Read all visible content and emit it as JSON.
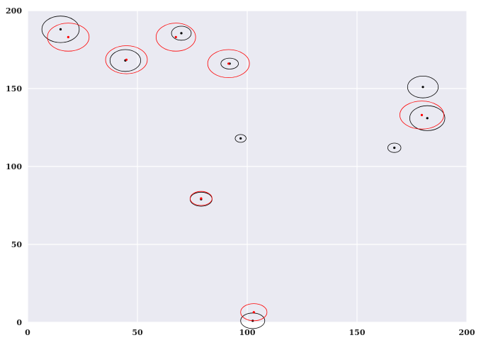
{
  "chart_data": {
    "type": "scatter",
    "title": "",
    "xlabel": "",
    "ylabel": "",
    "xlim": [
      0,
      200
    ],
    "ylim": [
      0,
      200
    ],
    "xticks": [
      0,
      50,
      100,
      150,
      200
    ],
    "yticks": [
      0,
      50,
      100,
      150,
      200
    ],
    "xtick_labels": [
      "0",
      "50",
      "100",
      "150",
      "200"
    ],
    "ytick_labels": [
      "0",
      "50",
      "100",
      "150",
      "200"
    ],
    "grid": true,
    "background": "#eaeaf2",
    "grid_color": "#ffffff",
    "series": [
      {
        "name": "black",
        "color": "#000000",
        "points": [
          {
            "x": 15,
            "y": 188,
            "rx": 8.5,
            "ry": 8.5
          },
          {
            "x": 44.5,
            "y": 168,
            "rx": 7,
            "ry": 7
          },
          {
            "x": 70,
            "y": 185.5,
            "rx": 4.5,
            "ry": 4.5
          },
          {
            "x": 92,
            "y": 166,
            "rx": 4,
            "ry": 3.5
          },
          {
            "x": 97,
            "y": 118,
            "rx": 2.5,
            "ry": 2.5
          },
          {
            "x": 79,
            "y": 79,
            "rx": 5,
            "ry": 4.5
          },
          {
            "x": 102.5,
            "y": 1,
            "rx": 5.5,
            "ry": 5
          },
          {
            "x": 180,
            "y": 151,
            "rx": 7,
            "ry": 7
          },
          {
            "x": 182,
            "y": 131,
            "rx": 8,
            "ry": 8
          },
          {
            "x": 167,
            "y": 112,
            "rx": 3,
            "ry": 3
          }
        ]
      },
      {
        "name": "red",
        "color": "#ff0000",
        "points": [
          {
            "x": 18.5,
            "y": 183,
            "rx": 9.5,
            "ry": 9
          },
          {
            "x": 45,
            "y": 168.5,
            "rx": 9.5,
            "ry": 9
          },
          {
            "x": 67.5,
            "y": 183,
            "rx": 9,
            "ry": 9
          },
          {
            "x": 91.5,
            "y": 166,
            "rx": 9.5,
            "ry": 9
          },
          {
            "x": 79,
            "y": 79.5,
            "rx": 5,
            "ry": 4.5
          },
          {
            "x": 103,
            "y": 6.5,
            "rx": 6,
            "ry": 5.5
          },
          {
            "x": 179.5,
            "y": 133,
            "rx": 10,
            "ry": 9
          }
        ]
      }
    ]
  }
}
